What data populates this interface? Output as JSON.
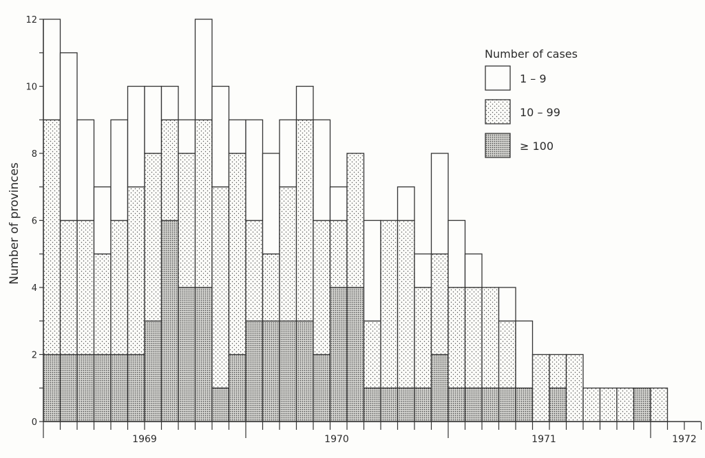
{
  "chart_data": {
    "type": "bar",
    "stacked": true,
    "xlabel": "",
    "ylabel": "Number of provinces",
    "ylim": [
      0,
      12
    ],
    "y_ticks": [
      "0",
      "2",
      "4",
      "6",
      "8",
      "10",
      "12"
    ],
    "x_tick_labels": [
      "1969",
      "1970",
      "1971",
      "1972"
    ],
    "legend_title": "Number of cases",
    "legend_position": "top-right",
    "grid": false,
    "series": [
      {
        "name": "≥ 100",
        "pattern": "dense-dots",
        "values": [
          2,
          2,
          2,
          2,
          2,
          2,
          3,
          6,
          4,
          4,
          1,
          2,
          3,
          3,
          3,
          3,
          2,
          4,
          4,
          1,
          1,
          1,
          1,
          2,
          1,
          1,
          1,
          1,
          1,
          0,
          1,
          0,
          0,
          0,
          0,
          1,
          0
        ]
      },
      {
        "name": "10 – 99",
        "pattern": "sparse-dots",
        "values": [
          7,
          4,
          4,
          3,
          4,
          5,
          5,
          3,
          4,
          5,
          6,
          6,
          3,
          2,
          4,
          6,
          4,
          2,
          4,
          2,
          5,
          5,
          3,
          3,
          3,
          3,
          3,
          2,
          0,
          2,
          1,
          2,
          1,
          1,
          1,
          0,
          1
        ]
      },
      {
        "name": "1 – 9",
        "pattern": "blank",
        "values": [
          3,
          5,
          3,
          2,
          3,
          3,
          2,
          1,
          1,
          3,
          3,
          1,
          3,
          3,
          2,
          1,
          3,
          1,
          0,
          3,
          0,
          1,
          1,
          3,
          2,
          1,
          0,
          1,
          2,
          0,
          0,
          0,
          0,
          0,
          0,
          0,
          0
        ]
      }
    ]
  }
}
